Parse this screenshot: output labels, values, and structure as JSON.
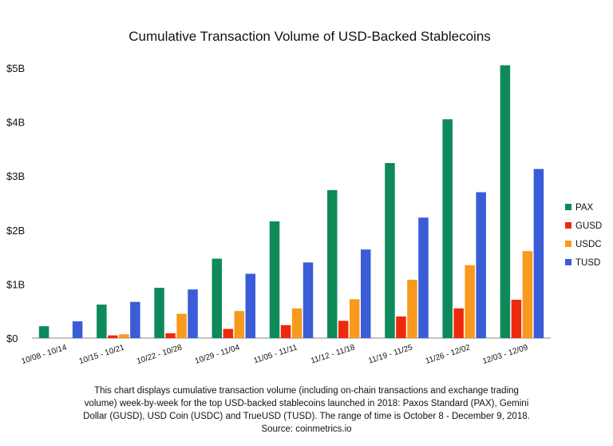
{
  "chart_data": {
    "type": "bar",
    "title": "Cumulative Transaction Volume of USD-Backed Stablecoins",
    "xlabel": "",
    "ylabel": "",
    "ylim": [
      0,
      5
    ],
    "ytick_values": [
      0,
      1,
      2,
      3,
      4,
      5
    ],
    "ytick_labels": [
      "$0",
      "$1B",
      "$2B",
      "$3B",
      "$4B",
      "$5B"
    ],
    "unit": "billion USD",
    "grid": false,
    "legend_position": "right",
    "categories": [
      "10/08 - 10/14",
      "10/15 - 10/21",
      "10/22 - 10/28",
      "10/29 - 11/04",
      "11/05 - 11/11",
      "11/12 - 11/18",
      "11/19 - 11/25",
      "11/26 - 12/02",
      "12/03 - 12/09"
    ],
    "series": [
      {
        "name": "PAX",
        "color": "#0e8a5a",
        "values": [
          0.22,
          0.62,
          0.93,
          1.47,
          2.16,
          2.74,
          3.24,
          4.05,
          5.05
        ]
      },
      {
        "name": "GUSD",
        "color": "#ee2a0c",
        "values": [
          0.0,
          0.05,
          0.09,
          0.17,
          0.24,
          0.32,
          0.4,
          0.55,
          0.71
        ]
      },
      {
        "name": "USDC",
        "color": "#f79a1d",
        "values": [
          0.0,
          0.07,
          0.45,
          0.5,
          0.55,
          0.72,
          1.08,
          1.35,
          1.61
        ]
      },
      {
        "name": "TUSD",
        "color": "#3a5cd6",
        "values": [
          0.31,
          0.67,
          0.9,
          1.19,
          1.4,
          1.64,
          2.23,
          2.7,
          3.13
        ]
      }
    ]
  },
  "caption": {
    "lines": [
      "This chart displays cumulative transaction volume (including on-chain transactions and exchange trading",
      "volume) week-by-week for the top USD-backed stablecoins launched in 2018: Paxos Standard (PAX), Gemini",
      "Dollar (GUSD), USD Coin (USDC) and TrueUSD (TUSD). The range of time is October 8 - December 9, 2018.",
      "Source: coinmetrics.io"
    ]
  }
}
